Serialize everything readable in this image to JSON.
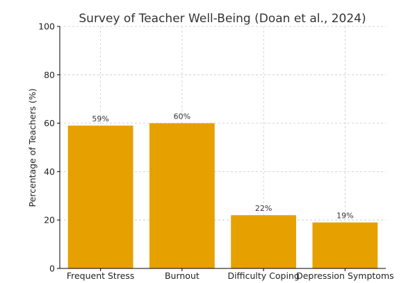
{
  "chart_data": {
    "type": "bar",
    "title": "Survey of Teacher Well-Being (Doan et al., 2024)",
    "xlabel": "",
    "ylabel": "Percentage of Teachers (%)",
    "categories": [
      "Frequent Stress",
      "Burnout",
      "Difficulty Coping",
      "Depression Symptoms"
    ],
    "values": [
      59,
      60,
      22,
      19
    ],
    "data_labels": [
      "59%",
      "60%",
      "22%",
      "19%"
    ],
    "ylim": [
      0,
      100
    ],
    "yticks": [
      0,
      20,
      40,
      60,
      80,
      100
    ],
    "grid": true,
    "bar_color": "#E6A000"
  }
}
